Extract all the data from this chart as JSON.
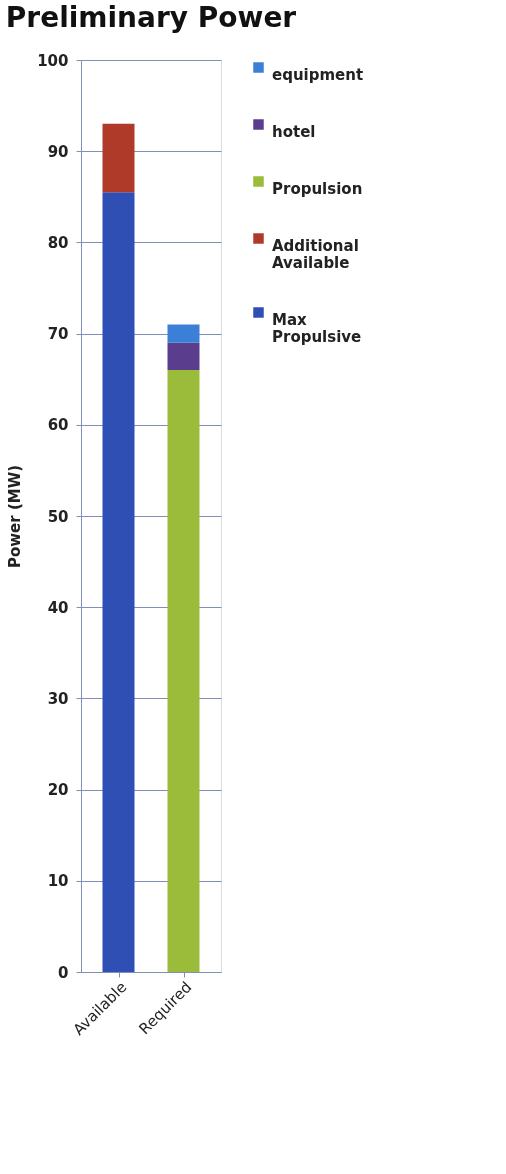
{
  "chart_data": {
    "type": "bar",
    "title": "Preliminary Power",
    "ylabel": "Power (MW)",
    "categories": [
      "Available",
      "Required"
    ],
    "stacked": true,
    "series": [
      {
        "name": "Max Propulsive",
        "color": "#2f4fb5",
        "values": [
          85.5,
          null
        ]
      },
      {
        "name": "Additional Available",
        "color": "#b03a2a",
        "values": [
          7.5,
          null
        ]
      },
      {
        "name": "Propulsion",
        "color": "#9bbb3a",
        "values": [
          null,
          66
        ]
      },
      {
        "name": "hotel",
        "color": "#5a3d8c",
        "values": [
          null,
          3
        ]
      },
      {
        "name": "equipment",
        "color": "#3b7fd6",
        "values": [
          null,
          2
        ]
      }
    ],
    "ylim": [
      0,
      100
    ],
    "yticks": [
      0,
      10,
      20,
      30,
      40,
      50,
      60,
      70,
      80,
      90,
      100
    ],
    "grid": "y",
    "legend": "right"
  }
}
